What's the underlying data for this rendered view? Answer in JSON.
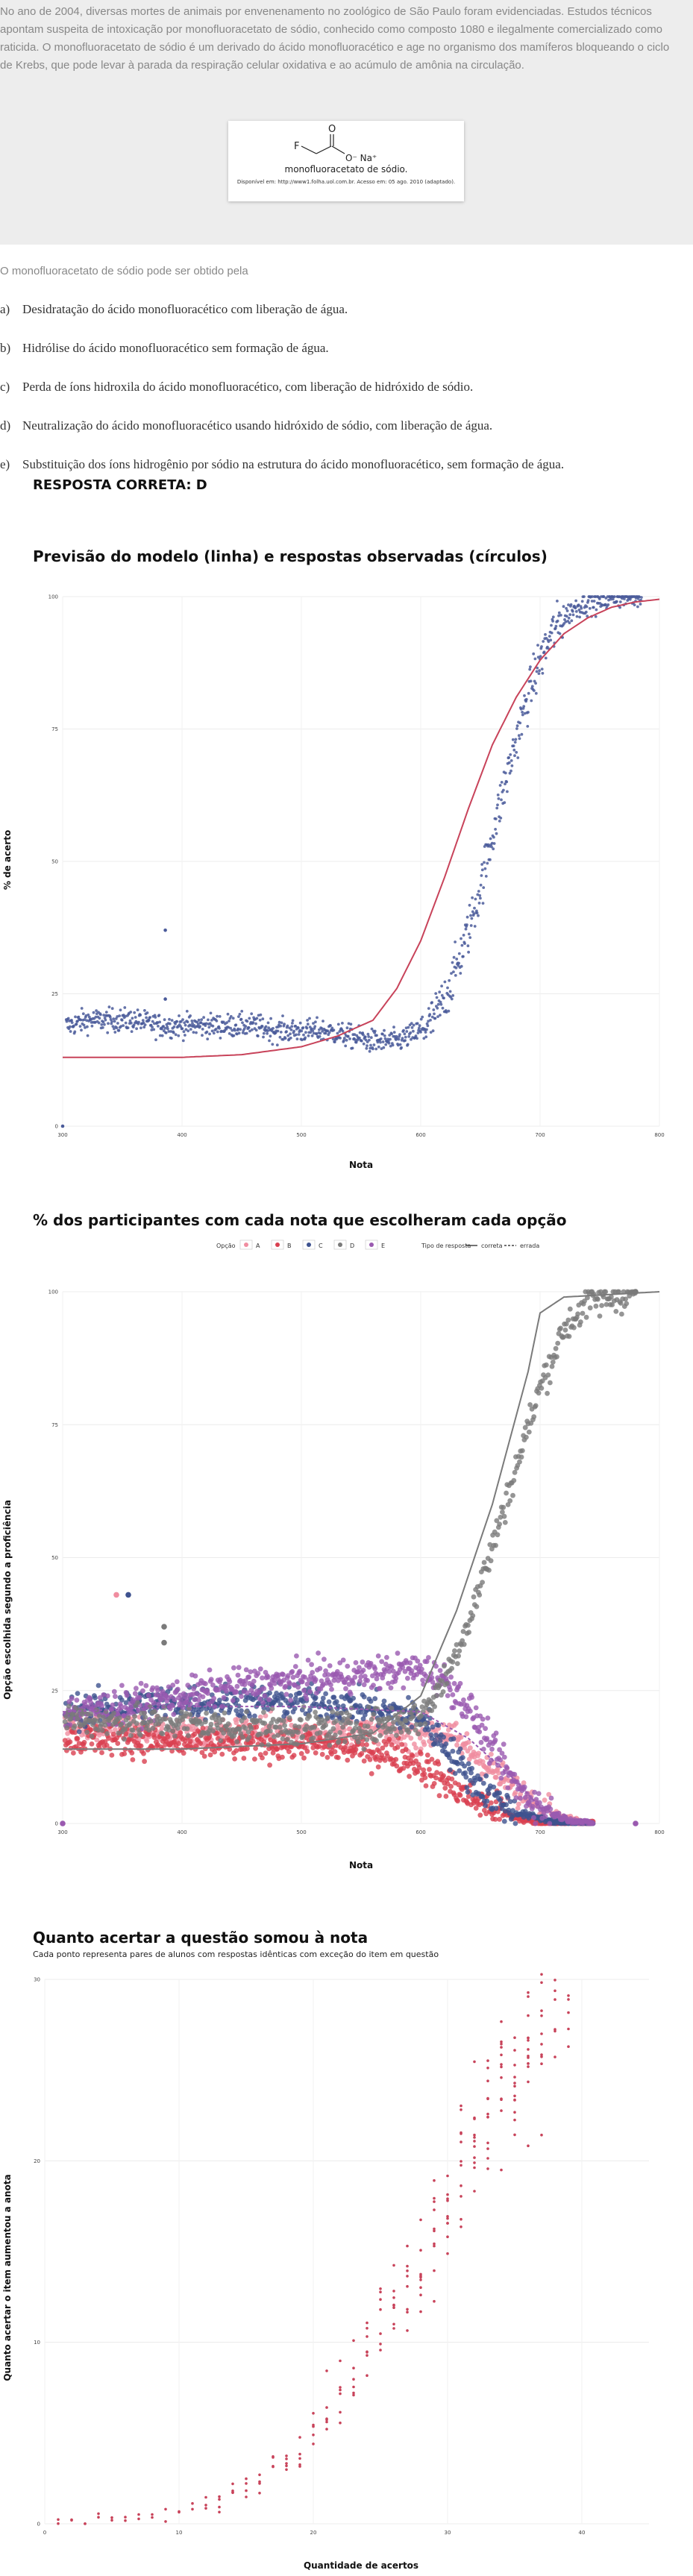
{
  "intro": {
    "text": "No ano de 2004, diversas mortes de animais por envenenamento no zoológico de São Paulo foram evidenciadas. Estudos técnicos apontam suspeita de intoxicação por monofluoracetato de sódio, conhecido como composto 1080 e ilegalmente comercializado como raticida. O monofluoracetato de sódio é um derivado do ácido monofluoracético e age no organismo dos mamíferos bloqueando o ciclo de Krebs, que pode levar à parada da respiração celular oxidativa e ao acúmulo de amônia na circulação.",
    "molecule_name": "monofluoracetato de sódio.",
    "molecule_source": "Disponível em: http://www1.folha.uol.com.br. Acesso em: 05 ago. 2010 (adaptado).",
    "atom_f": "F",
    "atom_o": "O",
    "atom_ion": "O⁻ Na⁺"
  },
  "question": {
    "stem": "O monofluoracetato de sódio pode ser obtido pela",
    "options": [
      {
        "letter": "a)",
        "text": "Desidratação do ácido monofluoracético com liberação de água."
      },
      {
        "letter": "b)",
        "text": "Hidrólise do ácido monofluoracético sem formação de água."
      },
      {
        "letter": "c)",
        "text": "Perda de íons hidroxila do ácido monofluoracético, com liberação de hidróxido de sódio."
      },
      {
        "letter": "d)",
        "text": "Neutralização do ácido monofluoracético usando hidróxido de sódio, com liberação de água."
      },
      {
        "letter": "e)",
        "text": "Substituição dos íons hidrogênio por sódio na estrutura do ácido monofluoracético, sem formação de água."
      }
    ],
    "answer": "RESPOSTA CORRETA: D"
  },
  "chart_data": [
    {
      "type": "scatter",
      "title": "Previsão do modelo (linha) e respostas observadas (círculos)",
      "xlabel": "Nota",
      "ylabel": "% de acerto",
      "xlim": [
        300,
        800
      ],
      "ylim": [
        0,
        100
      ],
      "xticks": [
        "300",
        "400",
        "500",
        "600",
        "700",
        "800"
      ],
      "yticks": [
        "0",
        "25",
        "50",
        "75",
        "100"
      ],
      "series": [
        {
          "kind": "points",
          "color": "#4a5a9a",
          "x": [
            305,
            320,
            340,
            360,
            380,
            400,
            420,
            440,
            460,
            480,
            500,
            520,
            540,
            560,
            580,
            600,
            610,
            620,
            630,
            640,
            650,
            660,
            670,
            680,
            690,
            700,
            710,
            720,
            730,
            740,
            750,
            760,
            770,
            780
          ],
          "y": [
            19,
            20,
            20,
            20,
            19,
            19,
            19,
            19,
            19,
            18,
            18,
            18,
            17,
            16,
            16,
            18,
            20,
            24,
            30,
            37,
            45,
            55,
            64,
            73,
            81,
            88,
            93,
            96,
            98,
            99,
            99,
            100,
            100,
            100
          ]
        },
        {
          "kind": "outliers",
          "color": "#4a5a9a",
          "x": [
            300,
            386,
            386
          ],
          "y": [
            0,
            37,
            24
          ]
        },
        {
          "kind": "line",
          "color": "#c8435a",
          "x": [
            300,
            400,
            450,
            500,
            530,
            560,
            580,
            600,
            620,
            640,
            660,
            680,
            700,
            720,
            740,
            760,
            780,
            800
          ],
          "y": [
            13,
            13,
            13.5,
            15,
            17,
            20,
            26,
            35,
            47,
            60,
            72,
            81,
            88,
            93,
            96,
            98,
            99,
            99.5
          ]
        }
      ]
    },
    {
      "type": "scatter",
      "title": "% dos participantes com cada nota que escolheram cada opção",
      "xlabel": "Nota",
      "ylabel": "Opção escolhida segundo a proficiência",
      "xlim": [
        300,
        800
      ],
      "ylim": [
        0,
        100
      ],
      "xticks": [
        "300",
        "400",
        "500",
        "600",
        "700",
        "800"
      ],
      "yticks": [
        "0",
        "25",
        "50",
        "75",
        "100"
      ],
      "legend": {
        "title_option": "Opção",
        "options": [
          "A",
          "B",
          "C",
          "D",
          "E"
        ],
        "title_type": "Tipo de resposta",
        "types": [
          "correta",
          "errada"
        ]
      },
      "series": [
        {
          "name": "A",
          "color": "#f08da0",
          "x": [
            300,
            350,
            400,
            450,
            500,
            550,
            600,
            620,
            640,
            660,
            680,
            700,
            720,
            740
          ],
          "y": [
            19,
            18,
            17,
            17,
            17,
            17,
            17,
            17,
            14,
            10,
            6,
            3,
            1,
            0
          ]
        },
        {
          "name": "B",
          "color": "#d94050",
          "x": [
            300,
            350,
            400,
            450,
            500,
            550,
            580,
            600,
            620,
            640,
            660,
            680,
            700,
            720
          ],
          "y": [
            16,
            16,
            15,
            15,
            15,
            14,
            13,
            11,
            8,
            5,
            3,
            1,
            0,
            0
          ]
        },
        {
          "name": "C",
          "color": "#3e528f",
          "x": [
            300,
            350,
            400,
            450,
            500,
            550,
            600,
            620,
            640,
            660,
            680,
            700,
            720
          ],
          "y": [
            21,
            22,
            23,
            23,
            23,
            22,
            20,
            15,
            9,
            5,
            2,
            1,
            0
          ]
        },
        {
          "name": "D",
          "color": "#7a7a7a",
          "x": [
            300,
            350,
            400,
            450,
            500,
            550,
            600,
            620,
            640,
            660,
            680,
            700,
            720,
            740,
            760,
            780
          ],
          "y": [
            20,
            19,
            19,
            18,
            18,
            18,
            20,
            27,
            38,
            52,
            67,
            82,
            93,
            98,
            99,
            100
          ]
        },
        {
          "name": "E",
          "color": "#9a5ab0",
          "x": [
            300,
            350,
            400,
            450,
            500,
            550,
            600,
            620,
            640,
            660,
            680,
            700,
            720,
            740
          ],
          "y": [
            21,
            22,
            24,
            26,
            27,
            28,
            29,
            27,
            22,
            14,
            7,
            3,
            1,
            0
          ]
        }
      ],
      "model_lines": [
        {
          "name": "D",
          "color": "#7a7a7a",
          "x": [
            300,
            400,
            500,
            560,
            600,
            630,
            660,
            690,
            700,
            720,
            760,
            800
          ],
          "y": [
            14,
            14,
            15,
            17,
            24,
            40,
            60,
            85,
            96,
            99,
            99.5,
            100
          ]
        },
        {
          "name": "E",
          "color": "#9a5ab0",
          "x": [
            300,
            400,
            500,
            600,
            640,
            680,
            700,
            720
          ],
          "y": [
            21,
            22,
            22,
            21,
            16,
            8,
            3,
            1
          ]
        }
      ],
      "outliers": [
        {
          "color": "#f08da0",
          "x": 345,
          "y": 43
        },
        {
          "color": "#3e528f",
          "x": 355,
          "y": 43
        },
        {
          "color": "#7a7a7a",
          "x": 385,
          "y": 37
        },
        {
          "color": "#7a7a7a",
          "x": 385,
          "y": 34
        },
        {
          "color": "#9a5ab0",
          "x": 300,
          "y": 0
        },
        {
          "color": "#7a7a7a",
          "x": 780,
          "y": 100
        },
        {
          "color": "#9a5ab0",
          "x": 780,
          "y": 0
        }
      ]
    },
    {
      "type": "scatter",
      "title": "Quanto acertar a questão somou à nota",
      "subtitle": "Cada ponto representa pares de alunos com respostas idênticas com exceção do item em questão",
      "xlabel": "Quantidade de acertos",
      "ylabel": "Quanto acertar o item aumentou a anota",
      "xlim": [
        0,
        45
      ],
      "ylim": [
        0,
        30
      ],
      "xticks": [
        "0",
        "10",
        "20",
        "30",
        "40"
      ],
      "yticks": [
        "0",
        "10",
        "20",
        "30"
      ],
      "color": "#c8435a",
      "points": [
        [
          1,
          0.1
        ],
        [
          2,
          0.1
        ],
        [
          3,
          0.1
        ],
        [
          4,
          0.2
        ],
        [
          5,
          0.2
        ],
        [
          6,
          0.3
        ],
        [
          7,
          0.3
        ],
        [
          8,
          0.4
        ],
        [
          9,
          0.5
        ],
        [
          10,
          0.6
        ],
        [
          11,
          0.8
        ],
        [
          12,
          1.0
        ],
        [
          13,
          1.3
        ],
        [
          14,
          1.7
        ],
        [
          15,
          2.1
        ],
        [
          16,
          2.6
        ],
        [
          17,
          3.2
        ],
        [
          18,
          3.8
        ],
        [
          19,
          4.6
        ],
        [
          20,
          5.5
        ],
        [
          21,
          6.5
        ],
        [
          22,
          7.5
        ],
        [
          23,
          8.5
        ],
        [
          24,
          9.6
        ],
        [
          25,
          11.0
        ],
        [
          26,
          12.2
        ],
        [
          27,
          13.5
        ],
        [
          28,
          15.0
        ],
        [
          29,
          16.5
        ],
        [
          30,
          18.0
        ],
        [
          31,
          19.5
        ],
        [
          32,
          21.0
        ],
        [
          33,
          23.0
        ],
        [
          34,
          24.5
        ],
        [
          35,
          25.5
        ],
        [
          36,
          27.0
        ],
        [
          37,
          28.5
        ],
        [
          38,
          30.0
        ],
        [
          39,
          31.5
        ],
        [
          40,
          33.0
        ]
      ]
    }
  ]
}
